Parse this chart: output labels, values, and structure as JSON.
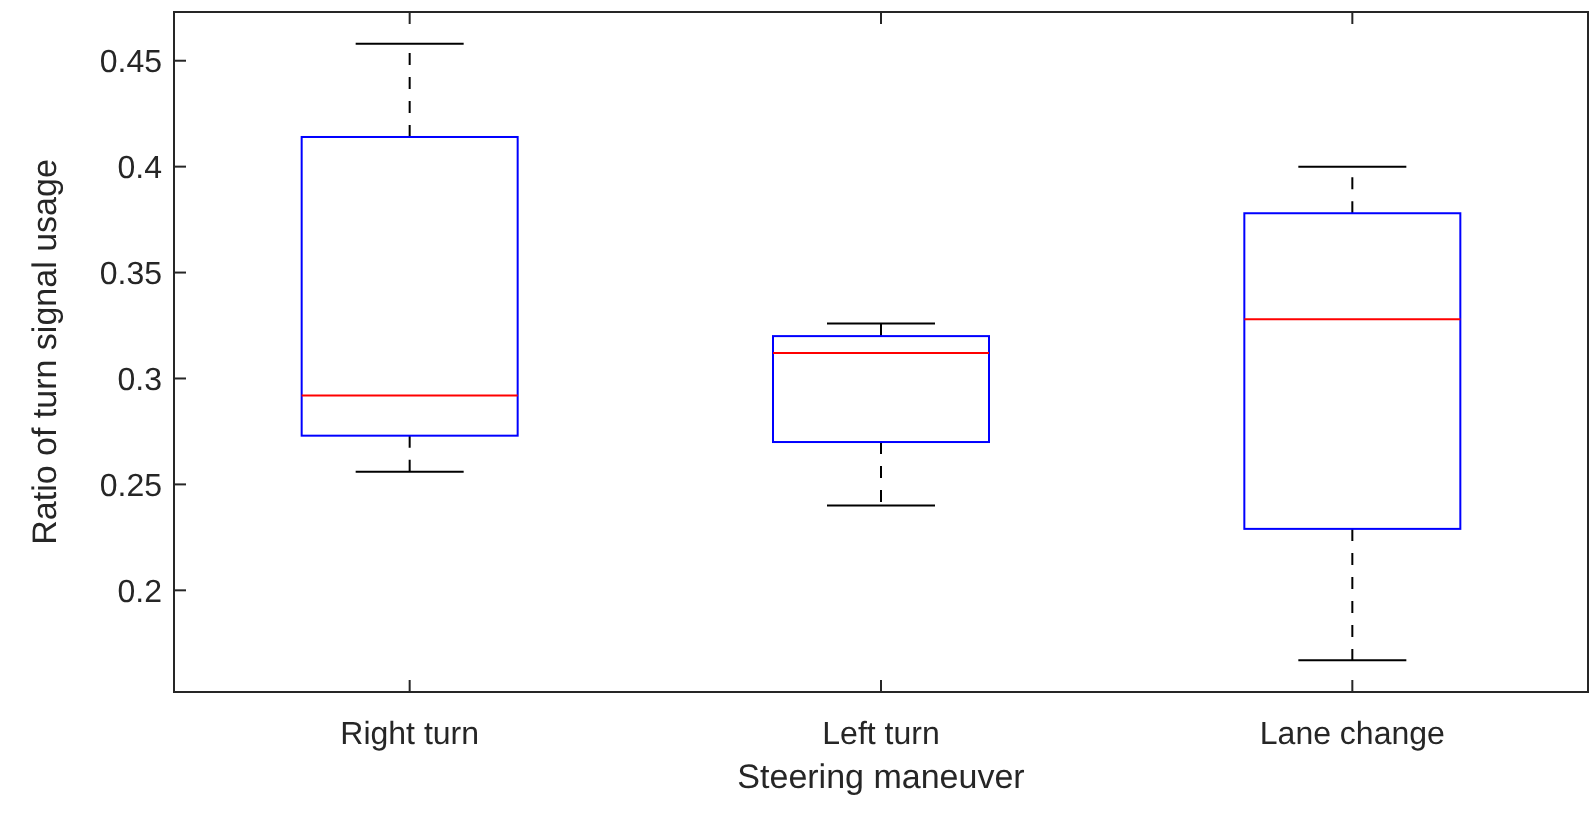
{
  "chart_data": {
    "type": "box",
    "xlabel": "Steering maneuver",
    "ylabel": "Ratio of turn signal usage",
    "categories": [
      "Right turn",
      "Left turn",
      "Lane change"
    ],
    "boxes": [
      {
        "low": 0.256,
        "q1": 0.273,
        "median": 0.292,
        "q3": 0.414,
        "high": 0.458
      },
      {
        "low": 0.24,
        "q1": 0.27,
        "median": 0.312,
        "q3": 0.32,
        "high": 0.326
      },
      {
        "low": 0.167,
        "q1": 0.229,
        "median": 0.328,
        "q3": 0.378,
        "high": 0.4
      }
    ],
    "color": "#0000ff",
    "ylim": [
      0.152,
      0.473
    ],
    "yticks": [
      0.2,
      0.25,
      0.3,
      0.35,
      0.4,
      0.45
    ],
    "grid": false
  }
}
